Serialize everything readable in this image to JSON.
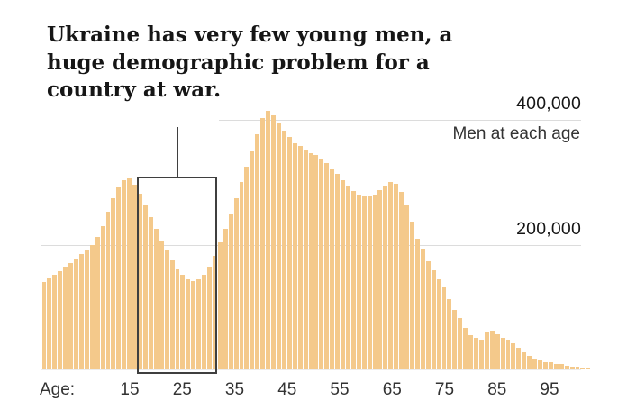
{
  "title": {
    "lines": [
      "Ukraine has very few young men, a",
      "huge demographic problem for a",
      "country at war."
    ]
  },
  "y_axis": {
    "labels": [
      {
        "text": "400,000",
        "value": 400000
      },
      {
        "text": "200,000",
        "value": 200000
      }
    ],
    "note": "Men at each age"
  },
  "x_axis": {
    "prefix": "Age:",
    "ticks": [
      {
        "label": "15",
        "age": 15
      },
      {
        "label": "25",
        "age": 25
      },
      {
        "label": "35",
        "age": 35
      },
      {
        "label": "45",
        "age": 45
      },
      {
        "label": "55",
        "age": 55
      },
      {
        "label": "65",
        "age": 65
      },
      {
        "label": "75",
        "age": 75
      },
      {
        "label": "85",
        "age": 85
      },
      {
        "label": "95",
        "age": 95
      }
    ]
  },
  "highlight_box": {
    "age_from": 18,
    "age_to": 32
  },
  "colors": {
    "bar": "#f4c98b",
    "gridline": "#dcdcdc",
    "box_border": "#3f3f3f",
    "title_text": "#161616",
    "axis_text": "#333333"
  },
  "chart_data": {
    "type": "bar",
    "title": "Ukraine has very few young men, a huge demographic problem for a country at war.",
    "ylabel": "Men at each age",
    "xlabel": "Age",
    "x_start_age": 0,
    "x_end_age": 102,
    "ylim": [
      0,
      430000
    ],
    "gridline_values": [
      200000,
      400000
    ],
    "grid": "horizontal-only",
    "legend_position": "none",
    "highlighted_age_range": [
      18,
      32
    ],
    "values": [
      140000,
      146000,
      152000,
      158000,
      165000,
      171000,
      178000,
      185000,
      192000,
      200000,
      212000,
      230000,
      252000,
      275000,
      292000,
      303000,
      307000,
      296000,
      281000,
      263000,
      244000,
      225000,
      207000,
      190000,
      175000,
      162000,
      151000,
      145000,
      142000,
      144000,
      152000,
      165000,
      182000,
      203000,
      226000,
      250000,
      275000,
      300000,
      325000,
      350000,
      377000,
      403000,
      415000,
      407000,
      394000,
      382000,
      372000,
      363000,
      358000,
      353000,
      347000,
      343000,
      337000,
      330000,
      322000,
      313000,
      303000,
      294000,
      286000,
      280000,
      277000,
      277000,
      280000,
      287000,
      295000,
      301000,
      297000,
      285000,
      264000,
      237000,
      209000,
      193000,
      174000,
      159000,
      144000,
      133000,
      112000,
      95000,
      82000,
      67000,
      55000,
      50000,
      48000,
      60000,
      62000,
      57000,
      50000,
      47000,
      42000,
      34000,
      27000,
      22000,
      18000,
      15000,
      12000,
      11000,
      9000,
      8000,
      6000,
      5000,
      4000,
      3000,
      3000
    ]
  }
}
